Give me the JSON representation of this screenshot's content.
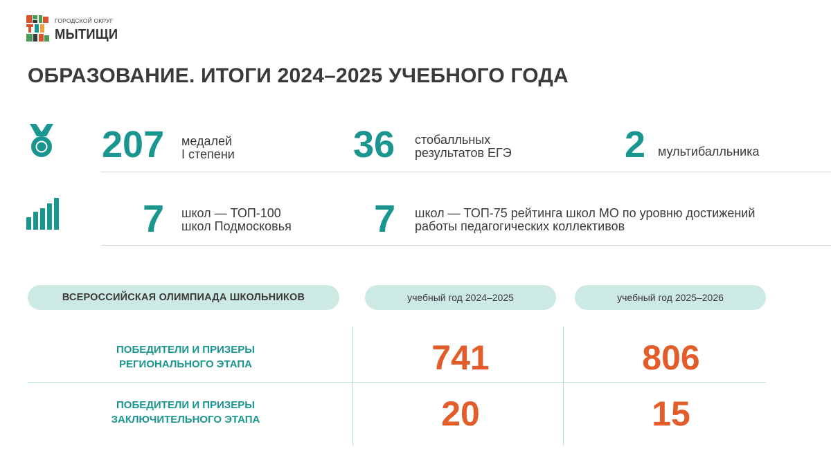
{
  "logo": {
    "mark_text": [
      "МЫ",
      "ТИ",
      "ЩИ"
    ],
    "subtitle": "ГОРОДСКОЙ ОКРУГ",
    "name": "МЫТИЩИ",
    "colors": {
      "red": "#d9532b",
      "green": "#4a9b54",
      "teal": "#1a9690",
      "dark": "#3a3a3a"
    }
  },
  "title": "ОБРАЗОВАНИЕ. ИТОГИ 2024–2025 УЧЕБНОГО ГОДА",
  "icons": {
    "row1": "medal-icon",
    "row2": "bar-chart-icon"
  },
  "stats_row1": [
    {
      "value": "207",
      "lines": [
        "медалей",
        "I степени"
      ]
    },
    {
      "value": "36",
      "lines": [
        "стобалльных",
        "результатов ЕГЭ"
      ]
    },
    {
      "value": "2",
      "lines": [
        "мультибалльника"
      ]
    }
  ],
  "stats_row2": [
    {
      "value": "7",
      "lines": [
        "школ — ТОП-100",
        "школ Подмосковья"
      ]
    },
    {
      "value": "7",
      "lines": [
        "школ — ТОП-75 рейтинга школ МО по уровню достижений",
        "работы педагогических коллективов"
      ]
    }
  ],
  "olympiad": {
    "header": "ВСЕРОССИЙСКАЯ ОЛИМПИАДА ШКОЛЬНИКОВ",
    "columns": [
      "учебный год 2024–2025",
      "учебный год 2025–2026"
    ],
    "rows": [
      {
        "label": [
          "ПОБЕДИТЕЛИ И ПРИЗЕРЫ",
          "РЕГИОНАЛЬНОГО ЭТАПА"
        ],
        "values": [
          "741",
          "806"
        ]
      },
      {
        "label": [
          "ПОБЕДИТЕЛИ И ПРИЗЕРЫ",
          "ЗАКЛЮЧИТЕЛЬНОГО ЭТАПА"
        ],
        "values": [
          "20",
          "15"
        ]
      }
    ]
  },
  "colors": {
    "accent_teal": "#1a9690",
    "accent_orange": "#e35d2a",
    "pill_bg": "#cde9e3",
    "text": "#3a3a3a"
  }
}
